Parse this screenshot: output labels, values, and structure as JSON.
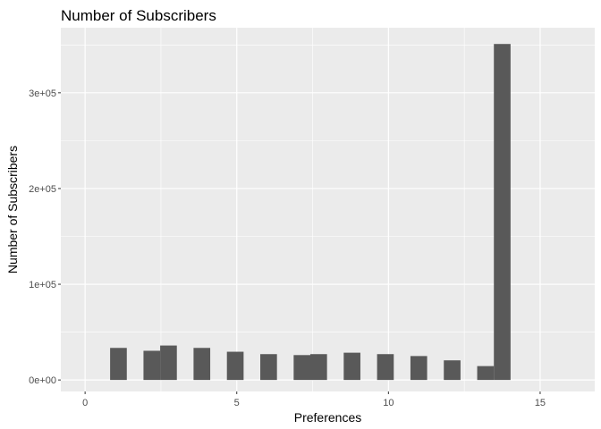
{
  "chart_data": {
    "type": "bar",
    "title": "Number of Subscribers",
    "xlabel": "Preferences",
    "ylabel": "Number of Subscribers",
    "bin_width": 0.55,
    "x": [
      1.1,
      2.2,
      2.75,
      3.85,
      4.95,
      6.05,
      7.15,
      7.7,
      8.8,
      9.9,
      11.0,
      12.1,
      13.2,
      13.75
    ],
    "values": [
      33500,
      30500,
      36000,
      33500,
      29500,
      27000,
      26000,
      27000,
      28500,
      27000,
      25000,
      20500,
      14500,
      351000
    ],
    "xlim": [
      -0.8,
      16.8
    ],
    "ylim": [
      -12000,
      368000
    ],
    "x_ticks": [
      {
        "value": 0,
        "label": "0"
      },
      {
        "value": 5,
        "label": "5"
      },
      {
        "value": 10,
        "label": "10"
      },
      {
        "value": 15,
        "label": "15"
      }
    ],
    "y_ticks": [
      {
        "value": 0,
        "label": "0e+00"
      },
      {
        "value": 100000,
        "label": "1e+05"
      },
      {
        "value": 200000,
        "label": "2e+05"
      },
      {
        "value": 300000,
        "label": "3e+05"
      }
    ],
    "grid": true,
    "colors": {
      "panel": "#ebebeb",
      "grid_major": "#ffffff",
      "bar": "#595959",
      "tick_text": "#4d4d4d"
    }
  }
}
